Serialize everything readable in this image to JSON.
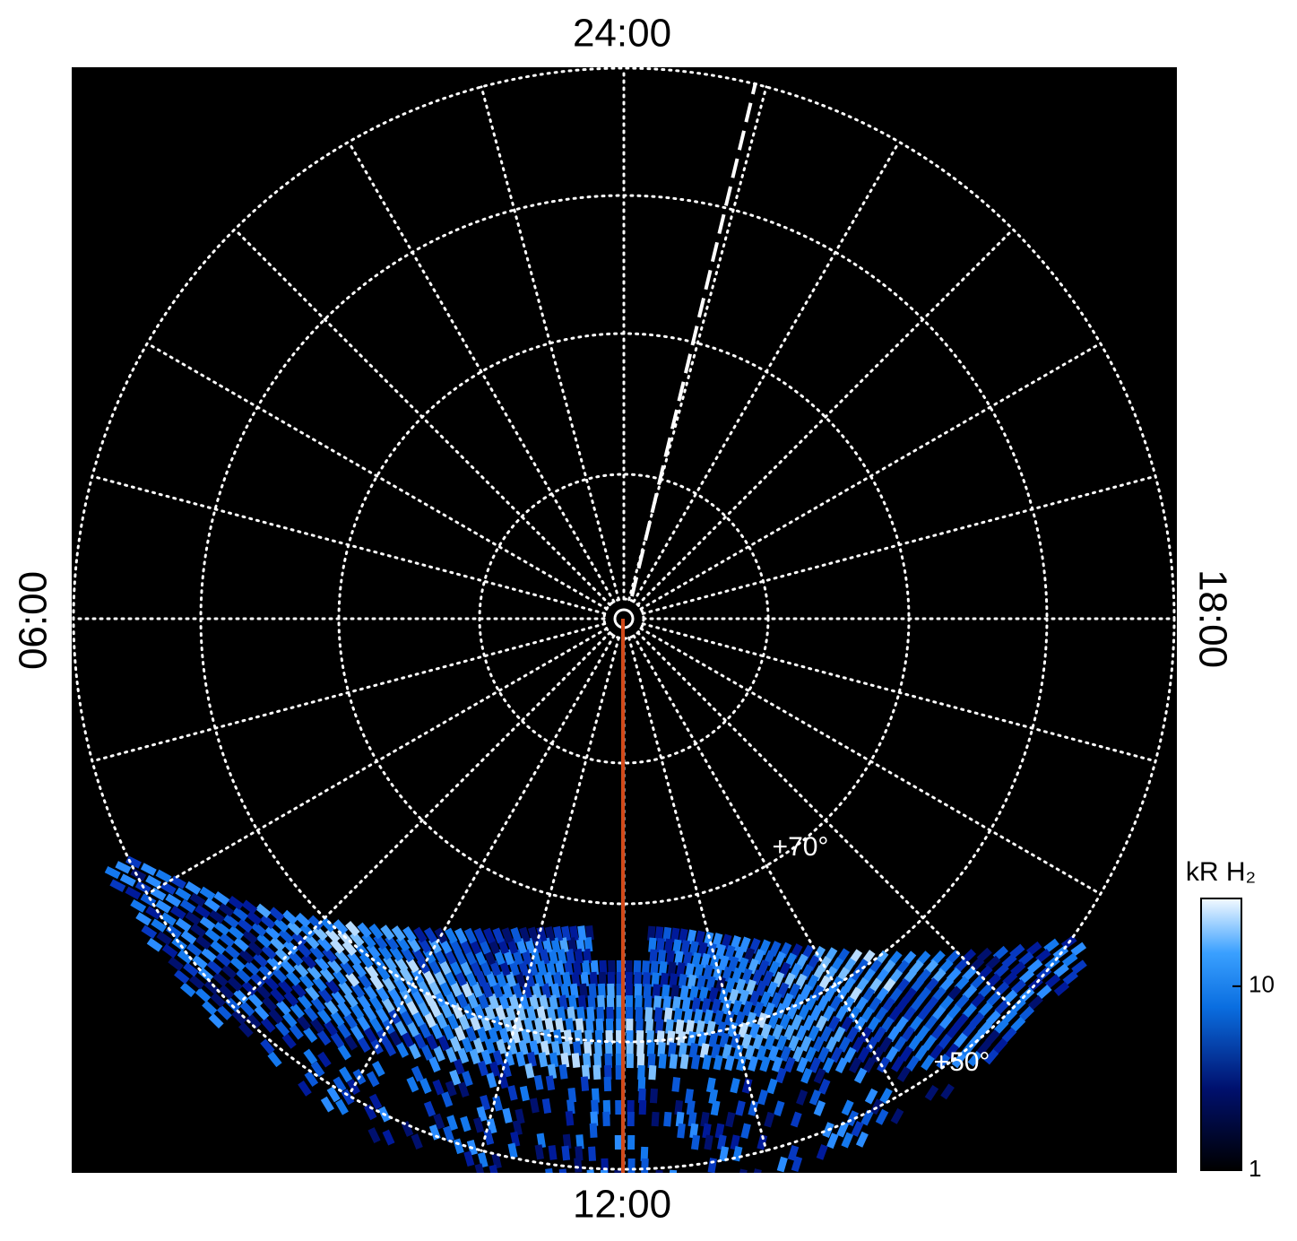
{
  "chart_data": {
    "type": "polar-image",
    "hour_labels": {
      "top": "24:00",
      "bottom": "12:00",
      "left": "06:00",
      "right": "18:00"
    },
    "latitude_labels": [
      "+70°",
      "+50°"
    ],
    "colorbar": {
      "label": "kR H₂",
      "log": true,
      "lim": [
        1,
        30
      ],
      "ticks": [
        1,
        10
      ]
    }
  }
}
